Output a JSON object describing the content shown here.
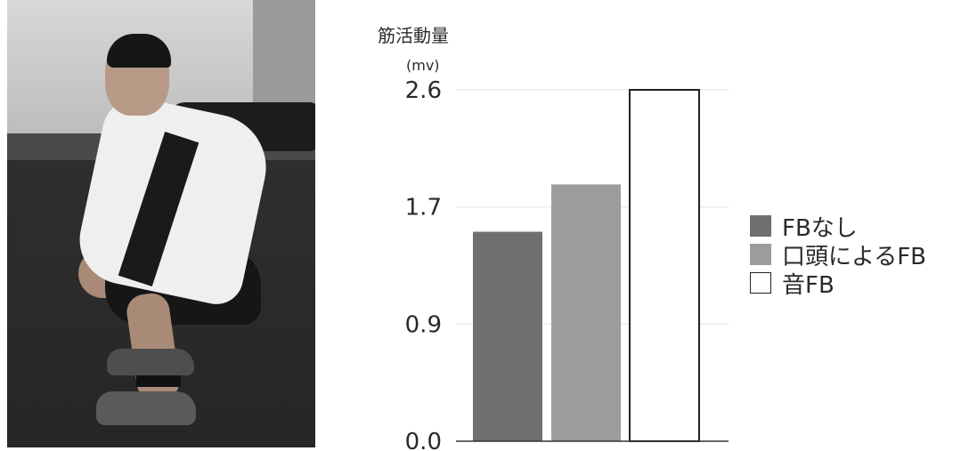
{
  "figure": {
    "photo_description_icon": "person-squat-photo"
  },
  "chart_data": {
    "type": "bar",
    "ylabel": "筋活動量",
    "yunit": "(mv)",
    "ylim": [
      0,
      2.6
    ],
    "yticks": [
      "0.0",
      "0.9",
      "1.7",
      "2.6"
    ],
    "ytick_values": [
      0,
      0.867,
      1.733,
      2.6
    ],
    "categories": [
      "FBなし",
      "口頭によるFB",
      "音FB"
    ],
    "values": [
      1.55,
      1.9,
      2.6
    ],
    "colors": [
      "#6f6f6f",
      "#9c9c9c",
      "#ffffff"
    ],
    "grid": true,
    "legend_position": "right"
  },
  "legend": {
    "items": [
      {
        "label": "FBなし",
        "color": "#6f6f6f"
      },
      {
        "label": "口頭によるFB",
        "color": "#9c9c9c"
      },
      {
        "label": "音FB",
        "color": "#ffffff"
      }
    ]
  }
}
